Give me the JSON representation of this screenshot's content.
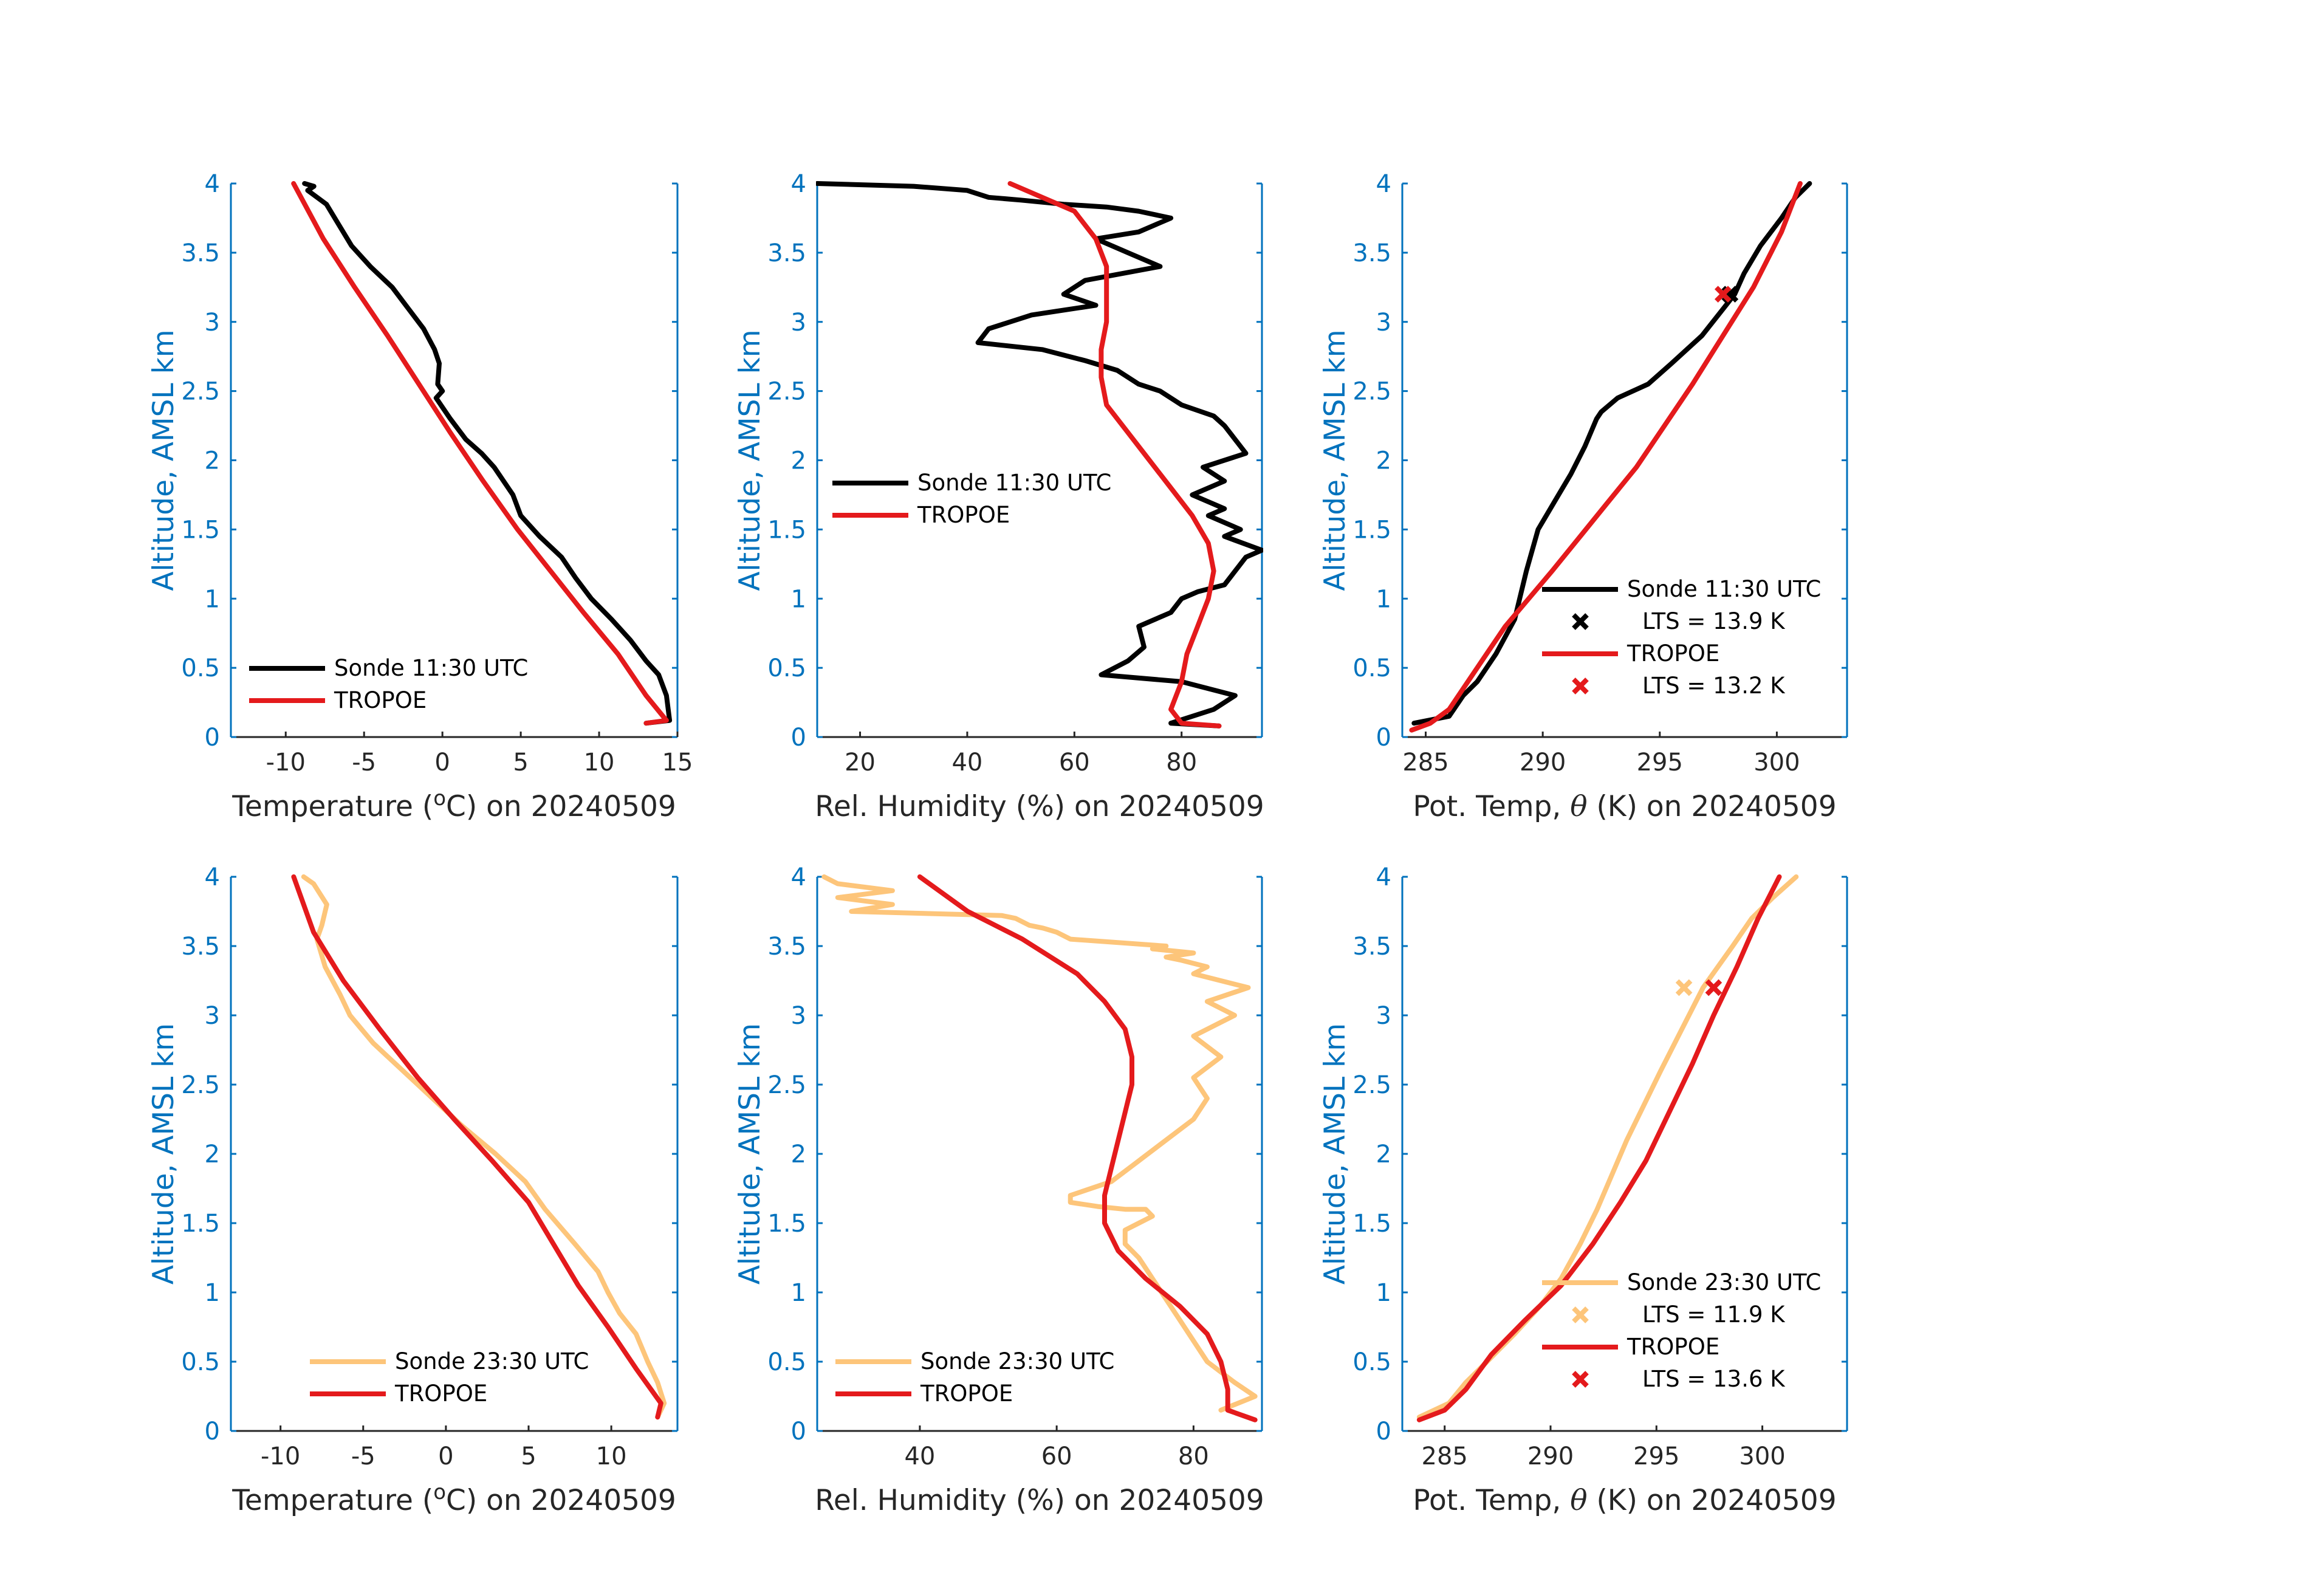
{
  "figure": {
    "date": "20240509"
  },
  "chart_data": [
    {
      "type": "line",
      "panel": "top-left",
      "xlabel": "Temperature (°C) on 20240509",
      "xlabel_prefix": "Temperature (",
      "xlabel_unit": "C",
      "xlabel_suffix": ") on 20240509",
      "ylabel": "Altitude, AMSL km",
      "xlim": [
        -13.5,
        15
      ],
      "ylim": [
        0,
        4
      ],
      "xticks": [
        -10,
        -5,
        0,
        5,
        10,
        15
      ],
      "xtick_labels": [
        "-10",
        "-5",
        "0",
        "5",
        "10",
        "15"
      ],
      "yticks": [
        0,
        0.5,
        1,
        1.5,
        2,
        2.5,
        3,
        3.5,
        4
      ],
      "ytick_labels": [
        "0",
        "0.5",
        "1",
        "1.5",
        "2",
        "2.5",
        "3",
        "3.5",
        "4"
      ],
      "legend": {
        "position": "lower-left",
        "entries": [
          {
            "label": "Sonde 11:30 UTC",
            "color": "#000000"
          },
          {
            "label": "TROPOE",
            "color": "#e41a1c"
          }
        ]
      },
      "series": [
        {
          "name": "Sonde 11:30 UTC",
          "color": "#000000",
          "x": [
            13.0,
            14.5,
            14.3,
            13.8,
            13.0,
            12.0,
            10.8,
            9.5,
            8.5,
            7.6,
            6.2,
            5.0,
            4.5,
            3.3,
            2.5,
            1.5,
            0.5,
            -0.4,
            0.0,
            -0.3,
            -0.2,
            -0.5,
            -1.2,
            -2.2,
            -3.2,
            -4.6,
            -5.8,
            -6.6,
            -7.4,
            -8.6,
            -8.2,
            -8.8
          ],
          "y": [
            0.1,
            0.12,
            0.3,
            0.45,
            0.55,
            0.7,
            0.85,
            1.0,
            1.15,
            1.3,
            1.45,
            1.6,
            1.75,
            1.95,
            2.05,
            2.15,
            2.3,
            2.45,
            2.5,
            2.55,
            2.7,
            2.8,
            2.95,
            3.1,
            3.25,
            3.4,
            3.55,
            3.7,
            3.85,
            3.95,
            3.98,
            4.0
          ]
        },
        {
          "name": "TROPOE",
          "color": "#e41a1c",
          "x": [
            13.0,
            14.3,
            13.0,
            11.2,
            9.0,
            6.9,
            4.8,
            2.6,
            0.5,
            -1.5,
            -3.5,
            -5.6,
            -7.6,
            -9.5
          ],
          "y": [
            0.1,
            0.12,
            0.3,
            0.6,
            0.9,
            1.2,
            1.5,
            1.85,
            2.2,
            2.55,
            2.9,
            3.25,
            3.6,
            4.0
          ]
        }
      ]
    },
    {
      "type": "line",
      "panel": "top-middle",
      "xlabel": "Rel. Humidity (%) on 20240509",
      "ylabel": "Altitude, AMSL km",
      "xlim": [
        12,
        95
      ],
      "ylim": [
        0,
        4
      ],
      "xticks": [
        20,
        40,
        60,
        80
      ],
      "xtick_labels": [
        "20",
        "40",
        "60",
        "80"
      ],
      "yticks": [
        0,
        0.5,
        1,
        1.5,
        2,
        2.5,
        3,
        3.5,
        4
      ],
      "ytick_labels": [
        "0",
        "0.5",
        "1",
        "1.5",
        "2",
        "2.5",
        "3",
        "3.5",
        "4"
      ],
      "legend": {
        "position": "middle-left",
        "entries": [
          {
            "label": "Sonde 11:30 UTC",
            "color": "#000000"
          },
          {
            "label": "TROPOE",
            "color": "#e41a1c"
          }
        ]
      },
      "series": [
        {
          "name": "Sonde 11:30 UTC",
          "color": "#000000",
          "x": [
            87,
            78,
            86,
            90,
            80,
            65,
            70,
            73,
            72,
            78,
            80,
            83,
            88,
            90,
            92,
            95,
            88,
            91,
            85,
            88,
            82,
            88,
            84,
            92,
            90,
            88,
            86,
            80,
            76,
            72,
            68,
            62,
            54,
            42,
            44,
            52,
            64,
            58,
            62,
            76,
            70,
            64,
            72,
            78,
            72,
            66,
            58,
            50,
            44,
            40,
            30,
            12
          ],
          "y": [
            0.08,
            0.1,
            0.2,
            0.3,
            0.4,
            0.45,
            0.55,
            0.65,
            0.8,
            0.9,
            1.0,
            1.05,
            1.1,
            1.2,
            1.3,
            1.35,
            1.45,
            1.5,
            1.6,
            1.65,
            1.75,
            1.85,
            1.95,
            2.05,
            2.15,
            2.25,
            2.32,
            2.4,
            2.5,
            2.55,
            2.65,
            2.72,
            2.8,
            2.85,
            2.95,
            3.05,
            3.12,
            3.2,
            3.3,
            3.4,
            3.5,
            3.6,
            3.65,
            3.75,
            3.8,
            3.83,
            3.85,
            3.88,
            3.9,
            3.95,
            3.98,
            4.0
          ]
        },
        {
          "name": "TROPOE",
          "color": "#e41a1c",
          "x": [
            87,
            80,
            78,
            80,
            81,
            83,
            85,
            86,
            85,
            82,
            78,
            74,
            70,
            66,
            65,
            65,
            66,
            66,
            64,
            60,
            54,
            48
          ],
          "y": [
            0.08,
            0.1,
            0.2,
            0.4,
            0.6,
            0.8,
            1.0,
            1.2,
            1.4,
            1.6,
            1.8,
            2.0,
            2.2,
            2.4,
            2.6,
            2.8,
            3.0,
            3.4,
            3.6,
            3.8,
            3.9,
            4.0
          ]
        }
      ]
    },
    {
      "type": "line",
      "panel": "top-right",
      "xlabel": "Pot. Temp, θ (K) on 20240509",
      "xlabel_prefix": "Pot. Temp, ",
      "xlabel_symbol": "θ",
      "xlabel_suffix": " (K) on 20240509",
      "ylabel": "Altitude, AMSL km",
      "xlim": [
        284,
        303
      ],
      "ylim": [
        0,
        4
      ],
      "xticks": [
        285,
        290,
        295,
        300
      ],
      "xtick_labels": [
        "285",
        "290",
        "295",
        "300"
      ],
      "yticks": [
        0,
        0.5,
        1,
        1.5,
        2,
        2.5,
        3,
        3.5,
        4
      ],
      "ytick_labels": [
        "0",
        "0.5",
        "1",
        "1.5",
        "2",
        "2.5",
        "3",
        "3.5",
        "4"
      ],
      "legend": {
        "position": "lower-right",
        "entries": [
          {
            "label": "Sonde 11:30 UTC",
            "color": "#000000",
            "kind": "line"
          },
          {
            "label": "LTS = 13.9 K",
            "color": "#000000",
            "kind": "marker"
          },
          {
            "label": "TROPOE",
            "color": "#e41a1c",
            "kind": "line"
          },
          {
            "label": "LTS = 13.2 K",
            "color": "#e41a1c",
            "kind": "marker"
          }
        ]
      },
      "lts_markers": [
        {
          "x": 298.0,
          "y": 3.2,
          "color": "#000000"
        },
        {
          "x": 297.7,
          "y": 3.2,
          "color": "#e41a1c"
        }
      ],
      "series": [
        {
          "name": "Sonde 11:30 UTC",
          "color": "#000000",
          "x": [
            284.5,
            286.0,
            286.6,
            287.2,
            288.0,
            288.8,
            289.3,
            289.8,
            290.5,
            291.2,
            291.8,
            292.3,
            292.5,
            293.2,
            294.5,
            295.5,
            296.8,
            297.5,
            298.2,
            298.6,
            299.3,
            300.2,
            300.8,
            301.4
          ],
          "y": [
            0.1,
            0.15,
            0.3,
            0.4,
            0.6,
            0.85,
            1.2,
            1.5,
            1.7,
            1.9,
            2.1,
            2.3,
            2.35,
            2.45,
            2.55,
            2.7,
            2.9,
            3.05,
            3.2,
            3.35,
            3.55,
            3.75,
            3.9,
            4.0
          ]
        },
        {
          "name": "TROPOE",
          "color": "#e41a1c",
          "x": [
            284.4,
            285.2,
            286.0,
            286.8,
            287.6,
            288.4,
            289.4,
            290.4,
            291.6,
            292.8,
            294.0,
            295.2,
            296.4,
            297.7,
            299.0,
            300.2,
            301.0
          ],
          "y": [
            0.05,
            0.1,
            0.2,
            0.4,
            0.6,
            0.8,
            1.0,
            1.2,
            1.45,
            1.7,
            1.95,
            2.25,
            2.55,
            2.9,
            3.25,
            3.65,
            4.0
          ]
        }
      ]
    },
    {
      "type": "line",
      "panel": "bottom-left",
      "xlabel": "Temperature (°C) on 20240509",
      "xlabel_prefix": "Temperature (",
      "xlabel_unit": "C",
      "xlabel_suffix": ") on 20240509",
      "ylabel": "Altitude, AMSL km",
      "xlim": [
        -13,
        14
      ],
      "ylim": [
        0,
        4
      ],
      "xticks": [
        -10,
        -5,
        0,
        5,
        10
      ],
      "xtick_labels": [
        "-10",
        "-5",
        "0",
        "5",
        "10"
      ],
      "yticks": [
        0,
        0.5,
        1,
        1.5,
        2,
        2.5,
        3,
        3.5,
        4
      ],
      "ytick_labels": [
        "0",
        "0.5",
        "1",
        "1.5",
        "2",
        "2.5",
        "3",
        "3.5",
        "4"
      ],
      "legend": {
        "position": "lower-right",
        "entries": [
          {
            "label": "Sonde 23:30 UTC",
            "color": "#FDC57A"
          },
          {
            "label": "TROPOE",
            "color": "#e41a1c"
          }
        ]
      },
      "series": [
        {
          "name": "Sonde 23:30 UTC",
          "color": "#FDC57A",
          "x": [
            12.8,
            13.2,
            12.8,
            12.2,
            11.5,
            10.5,
            9.8,
            9.2,
            7.8,
            6.0,
            4.8,
            3.0,
            1.0,
            -0.8,
            -2.6,
            -4.4,
            -5.8,
            -6.4,
            -7.3,
            -7.8,
            -7.5,
            -7.2,
            -8.0,
            -8.6
          ],
          "y": [
            0.1,
            0.2,
            0.35,
            0.5,
            0.7,
            0.85,
            1.0,
            1.15,
            1.35,
            1.6,
            1.8,
            2.0,
            2.2,
            2.4,
            2.6,
            2.8,
            3.0,
            3.15,
            3.35,
            3.55,
            3.65,
            3.8,
            3.95,
            4.0
          ]
        },
        {
          "name": "TROPOE",
          "color": "#e41a1c",
          "x": [
            12.8,
            13.0,
            11.5,
            9.8,
            8.0,
            6.5,
            5.0,
            2.8,
            0.5,
            -1.7,
            -4.0,
            -6.2,
            -8.0,
            -9.2
          ],
          "y": [
            0.1,
            0.2,
            0.45,
            0.75,
            1.05,
            1.35,
            1.65,
            1.95,
            2.25,
            2.55,
            2.9,
            3.25,
            3.6,
            4.0
          ]
        }
      ]
    },
    {
      "type": "line",
      "panel": "bottom-middle",
      "xlabel": "Rel. Humidity (%) on 20240509",
      "ylabel": "Altitude, AMSL km",
      "xlim": [
        25,
        90
      ],
      "ylim": [
        0,
        4
      ],
      "xticks": [
        40,
        60,
        80
      ],
      "xtick_labels": [
        "40",
        "60",
        "80"
      ],
      "yticks": [
        0,
        0.5,
        1,
        1.5,
        2,
        2.5,
        3,
        3.5,
        4
      ],
      "ytick_labels": [
        "0",
        "0.5",
        "1",
        "1.5",
        "2",
        "2.5",
        "3",
        "3.5",
        "4"
      ],
      "legend": {
        "position": "lower-left",
        "entries": [
          {
            "label": "Sonde 23:30 UTC",
            "color": "#FDC57A"
          },
          {
            "label": "TROPOE",
            "color": "#e41a1c"
          }
        ]
      },
      "series": [
        {
          "name": "Sonde 23:30 UTC",
          "color": "#FDC57A",
          "x": [
            84,
            89,
            86,
            82,
            80,
            78,
            76,
            74,
            72,
            70,
            70,
            72,
            74,
            73,
            70,
            66,
            62,
            62,
            68,
            72,
            76,
            80,
            82,
            80,
            84,
            80,
            86,
            82,
            88,
            80,
            82,
            78,
            76,
            80,
            74,
            76,
            62,
            60,
            58,
            56,
            54,
            52,
            30,
            36,
            28,
            36,
            28,
            26
          ],
          "y": [
            0.15,
            0.25,
            0.35,
            0.5,
            0.65,
            0.8,
            0.95,
            1.1,
            1.25,
            1.35,
            1.45,
            1.5,
            1.55,
            1.6,
            1.6,
            1.62,
            1.65,
            1.7,
            1.8,
            1.95,
            2.1,
            2.25,
            2.4,
            2.55,
            2.7,
            2.85,
            3.0,
            3.1,
            3.2,
            3.3,
            3.35,
            3.4,
            3.42,
            3.45,
            3.48,
            3.5,
            3.55,
            3.6,
            3.63,
            3.65,
            3.7,
            3.72,
            3.75,
            3.8,
            3.85,
            3.9,
            3.95,
            4.0
          ]
        },
        {
          "name": "TROPOE",
          "color": "#e41a1c",
          "x": [
            89,
            85,
            85,
            84,
            82,
            78,
            73,
            69,
            67,
            67,
            68,
            69,
            70,
            71,
            71,
            70,
            67,
            63,
            55,
            47,
            40
          ],
          "y": [
            0.08,
            0.15,
            0.3,
            0.5,
            0.7,
            0.9,
            1.1,
            1.3,
            1.5,
            1.7,
            1.9,
            2.1,
            2.3,
            2.5,
            2.7,
            2.9,
            3.1,
            3.3,
            3.55,
            3.75,
            4.0
          ]
        }
      ]
    },
    {
      "type": "line",
      "panel": "bottom-right",
      "xlabel": "Pot. Temp, θ (K) on 20240509",
      "xlabel_prefix": "Pot. Temp, ",
      "xlabel_symbol": "θ",
      "xlabel_suffix": " (K) on 20240509",
      "ylabel": "Altitude, AMSL km",
      "xlim": [
        283,
        304
      ],
      "ylim": [
        0,
        4
      ],
      "xticks": [
        285,
        290,
        295,
        300
      ],
      "xtick_labels": [
        "285",
        "290",
        "295",
        "300"
      ],
      "yticks": [
        0,
        0.5,
        1,
        1.5,
        2,
        2.5,
        3,
        3.5,
        4
      ],
      "ytick_labels": [
        "0",
        "0.5",
        "1",
        "1.5",
        "2",
        "2.5",
        "3",
        "3.5",
        "4"
      ],
      "legend": {
        "position": "lower-right",
        "entries": [
          {
            "label": "Sonde 23:30 UTC",
            "color": "#FDC57A",
            "kind": "line"
          },
          {
            "label": "LTS = 11.9 K",
            "color": "#FDC57A",
            "kind": "marker"
          },
          {
            "label": "TROPOE",
            "color": "#e41a1c",
            "kind": "line"
          },
          {
            "label": "LTS = 13.6 K",
            "color": "#e41a1c",
            "kind": "marker"
          }
        ]
      },
      "lts_markers": [
        {
          "x": 296.3,
          "y": 3.2,
          "color": "#FDC57A"
        },
        {
          "x": 297.7,
          "y": 3.2,
          "color": "#e41a1c"
        }
      ],
      "series": [
        {
          "name": "Sonde 23:30 UTC",
          "color": "#FDC57A",
          "x": [
            283.8,
            285.2,
            286.0,
            287.0,
            288.3,
            289.5,
            290.5,
            291.4,
            292.2,
            292.9,
            293.6,
            294.4,
            295.2,
            296.2,
            297.2,
            298.6,
            299.5,
            300.5,
            301.6
          ],
          "y": [
            0.1,
            0.2,
            0.35,
            0.5,
            0.7,
            0.9,
            1.1,
            1.35,
            1.6,
            1.85,
            2.1,
            2.35,
            2.6,
            2.9,
            3.2,
            3.5,
            3.7,
            3.85,
            4.0
          ]
        },
        {
          "name": "TROPOE",
          "color": "#e41a1c",
          "x": [
            283.8,
            285.0,
            286.0,
            287.2,
            288.8,
            290.5,
            292.0,
            293.3,
            294.5,
            295.6,
            296.7,
            297.7,
            298.8,
            299.8,
            300.8
          ],
          "y": [
            0.08,
            0.15,
            0.3,
            0.55,
            0.8,
            1.05,
            1.35,
            1.65,
            1.95,
            2.3,
            2.65,
            3.0,
            3.35,
            3.7,
            4.0
          ]
        }
      ]
    }
  ]
}
